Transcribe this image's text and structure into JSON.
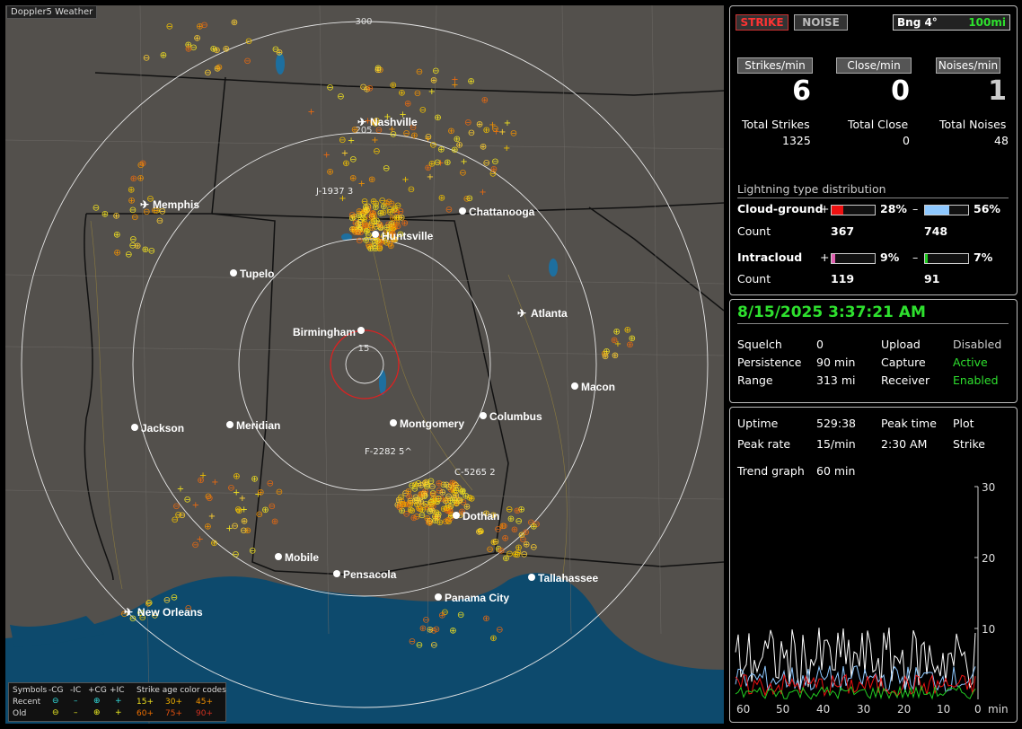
{
  "app_title": "Doppler5 Weather",
  "map": {
    "cities": [
      "Nashville",
      "Memphis",
      "Chattanooga",
      "Huntsville",
      "Tupelo",
      "Atlanta",
      "Birmingham",
      "Macon",
      "Jackson",
      "Meridian",
      "Montgomery",
      "Columbus",
      "Dothan",
      "Mobile",
      "Pensacola",
      "Tallahassee",
      "Panama City",
      "New Orleans"
    ],
    "range_labels": [
      "300",
      "205",
      "15"
    ],
    "storm_labels": [
      "J-1937 3",
      "F-2282 5^",
      "C-5265 2"
    ]
  },
  "legend": {
    "symbols_label": "Symbols",
    "headers": [
      "-CG",
      "-IC",
      "+CG",
      "+IC"
    ],
    "rows": [
      {
        "label": "Recent",
        "ages": [
          "15+",
          "30+",
          "45+"
        ]
      },
      {
        "label": "Old",
        "ages": [
          "60+",
          "75+",
          "90+"
        ]
      }
    ],
    "age_title": "Strike age color codes"
  },
  "top": {
    "strike_label": "STRIKE",
    "noise_label": "NOISE",
    "bearing": "Bng 4°",
    "range": "100mi",
    "strikes_min_label": "Strikes/min",
    "close_min_label": "Close/min",
    "noises_min_label": "Noises/min",
    "strikes_min": "6",
    "close_min": "0",
    "noises_min": "1",
    "total_strikes_label": "Total Strikes",
    "total_close_label": "Total Close",
    "total_noises_label": "Total Noises",
    "total_strikes": "1325",
    "total_close": "0",
    "total_noises": "48",
    "dist_title": "Lightning type distribution",
    "cg_label": "Cloud-ground",
    "ic_label": "Intracloud",
    "count_label": "Count",
    "cg_pos_pct": "28%",
    "cg_neg_pct": "56%",
    "cg_pos_count": "367",
    "cg_neg_count": "748",
    "ic_pos_pct": "9%",
    "ic_neg_pct": "7%",
    "ic_pos_count": "119",
    "ic_neg_count": "91",
    "plus": "+",
    "minus": "–",
    "fills": {
      "cg_pos": 0.28,
      "cg_neg": 0.56,
      "ic_pos": 0.09,
      "ic_neg": 0.07
    },
    "colors": {
      "cg_pos": "#ee1111",
      "cg_neg": "#8ec8ff",
      "ic_pos": "#e060b0",
      "ic_neg": "#22cc22"
    }
  },
  "status": {
    "datetime": "8/15/2025 3:37:21 AM",
    "squelch_label": "Squelch",
    "squelch": "0",
    "upload_label": "Upload",
    "upload": "Disabled",
    "persistence_label": "Persistence",
    "persistence": "90 min",
    "capture_label": "Capture",
    "capture": "Active",
    "range_label": "Range",
    "range": "313 mi",
    "receiver_label": "Receiver",
    "receiver": "Enabled"
  },
  "trend": {
    "uptime_label": "Uptime",
    "uptime": "529:38",
    "peak_time_label": "Peak time",
    "peak_time": "2:30 AM",
    "plot_label": "Plot",
    "peak_rate_label": "Peak rate",
    "peak_rate": "15/min",
    "plot": "Strike",
    "trend_label": "Trend graph",
    "trend_value": "60 min",
    "x_ticks": [
      "60",
      "50",
      "40",
      "30",
      "20",
      "10",
      "0"
    ],
    "x_unit": "min",
    "y_ticks": [
      "30",
      "20",
      "10"
    ]
  }
}
